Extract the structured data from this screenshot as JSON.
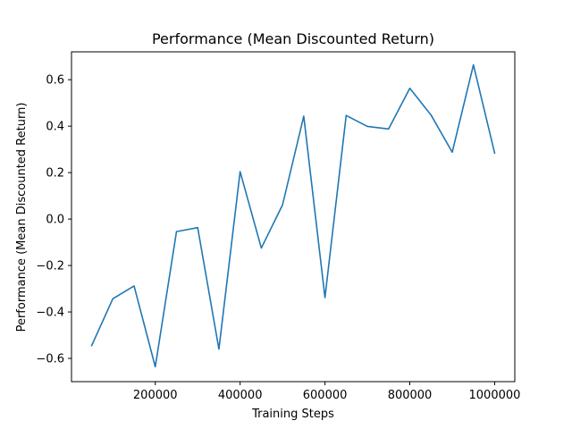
{
  "chart_data": {
    "type": "line",
    "title": "Performance (Mean Discounted Return)",
    "xlabel": "Training Steps",
    "ylabel": "Performance (Mean Discounted Return)",
    "xlim": [
      2500,
      1047500
    ],
    "ylim": [
      -0.7,
      0.72
    ],
    "xticks": [
      200000,
      400000,
      600000,
      800000,
      1000000
    ],
    "xtick_labels": [
      "200000",
      "400000",
      "600000",
      "800000",
      "1000000"
    ],
    "yticks": [
      -0.6,
      -0.4,
      -0.2,
      0.0,
      0.2,
      0.4,
      0.6
    ],
    "ytick_labels": [
      "−0.6",
      "−0.4",
      "−0.2",
      "0.0",
      "0.2",
      "0.4",
      "0.6"
    ],
    "grid": false,
    "legend": false,
    "series": [
      {
        "color": "#1f77b4",
        "x": [
          50000,
          100000,
          150000,
          200000,
          250000,
          300000,
          350000,
          400000,
          450000,
          500000,
          550000,
          600000,
          650000,
          700000,
          750000,
          800000,
          850000,
          900000,
          950000,
          1000000
        ],
        "y": [
          -0.545,
          -0.343,
          -0.288,
          -0.636,
          -0.054,
          -0.037,
          -0.56,
          0.204,
          -0.125,
          0.061,
          0.443,
          -0.338,
          0.446,
          0.399,
          0.388,
          0.563,
          0.448,
          0.288,
          0.664,
          0.284
        ]
      }
    ]
  }
}
